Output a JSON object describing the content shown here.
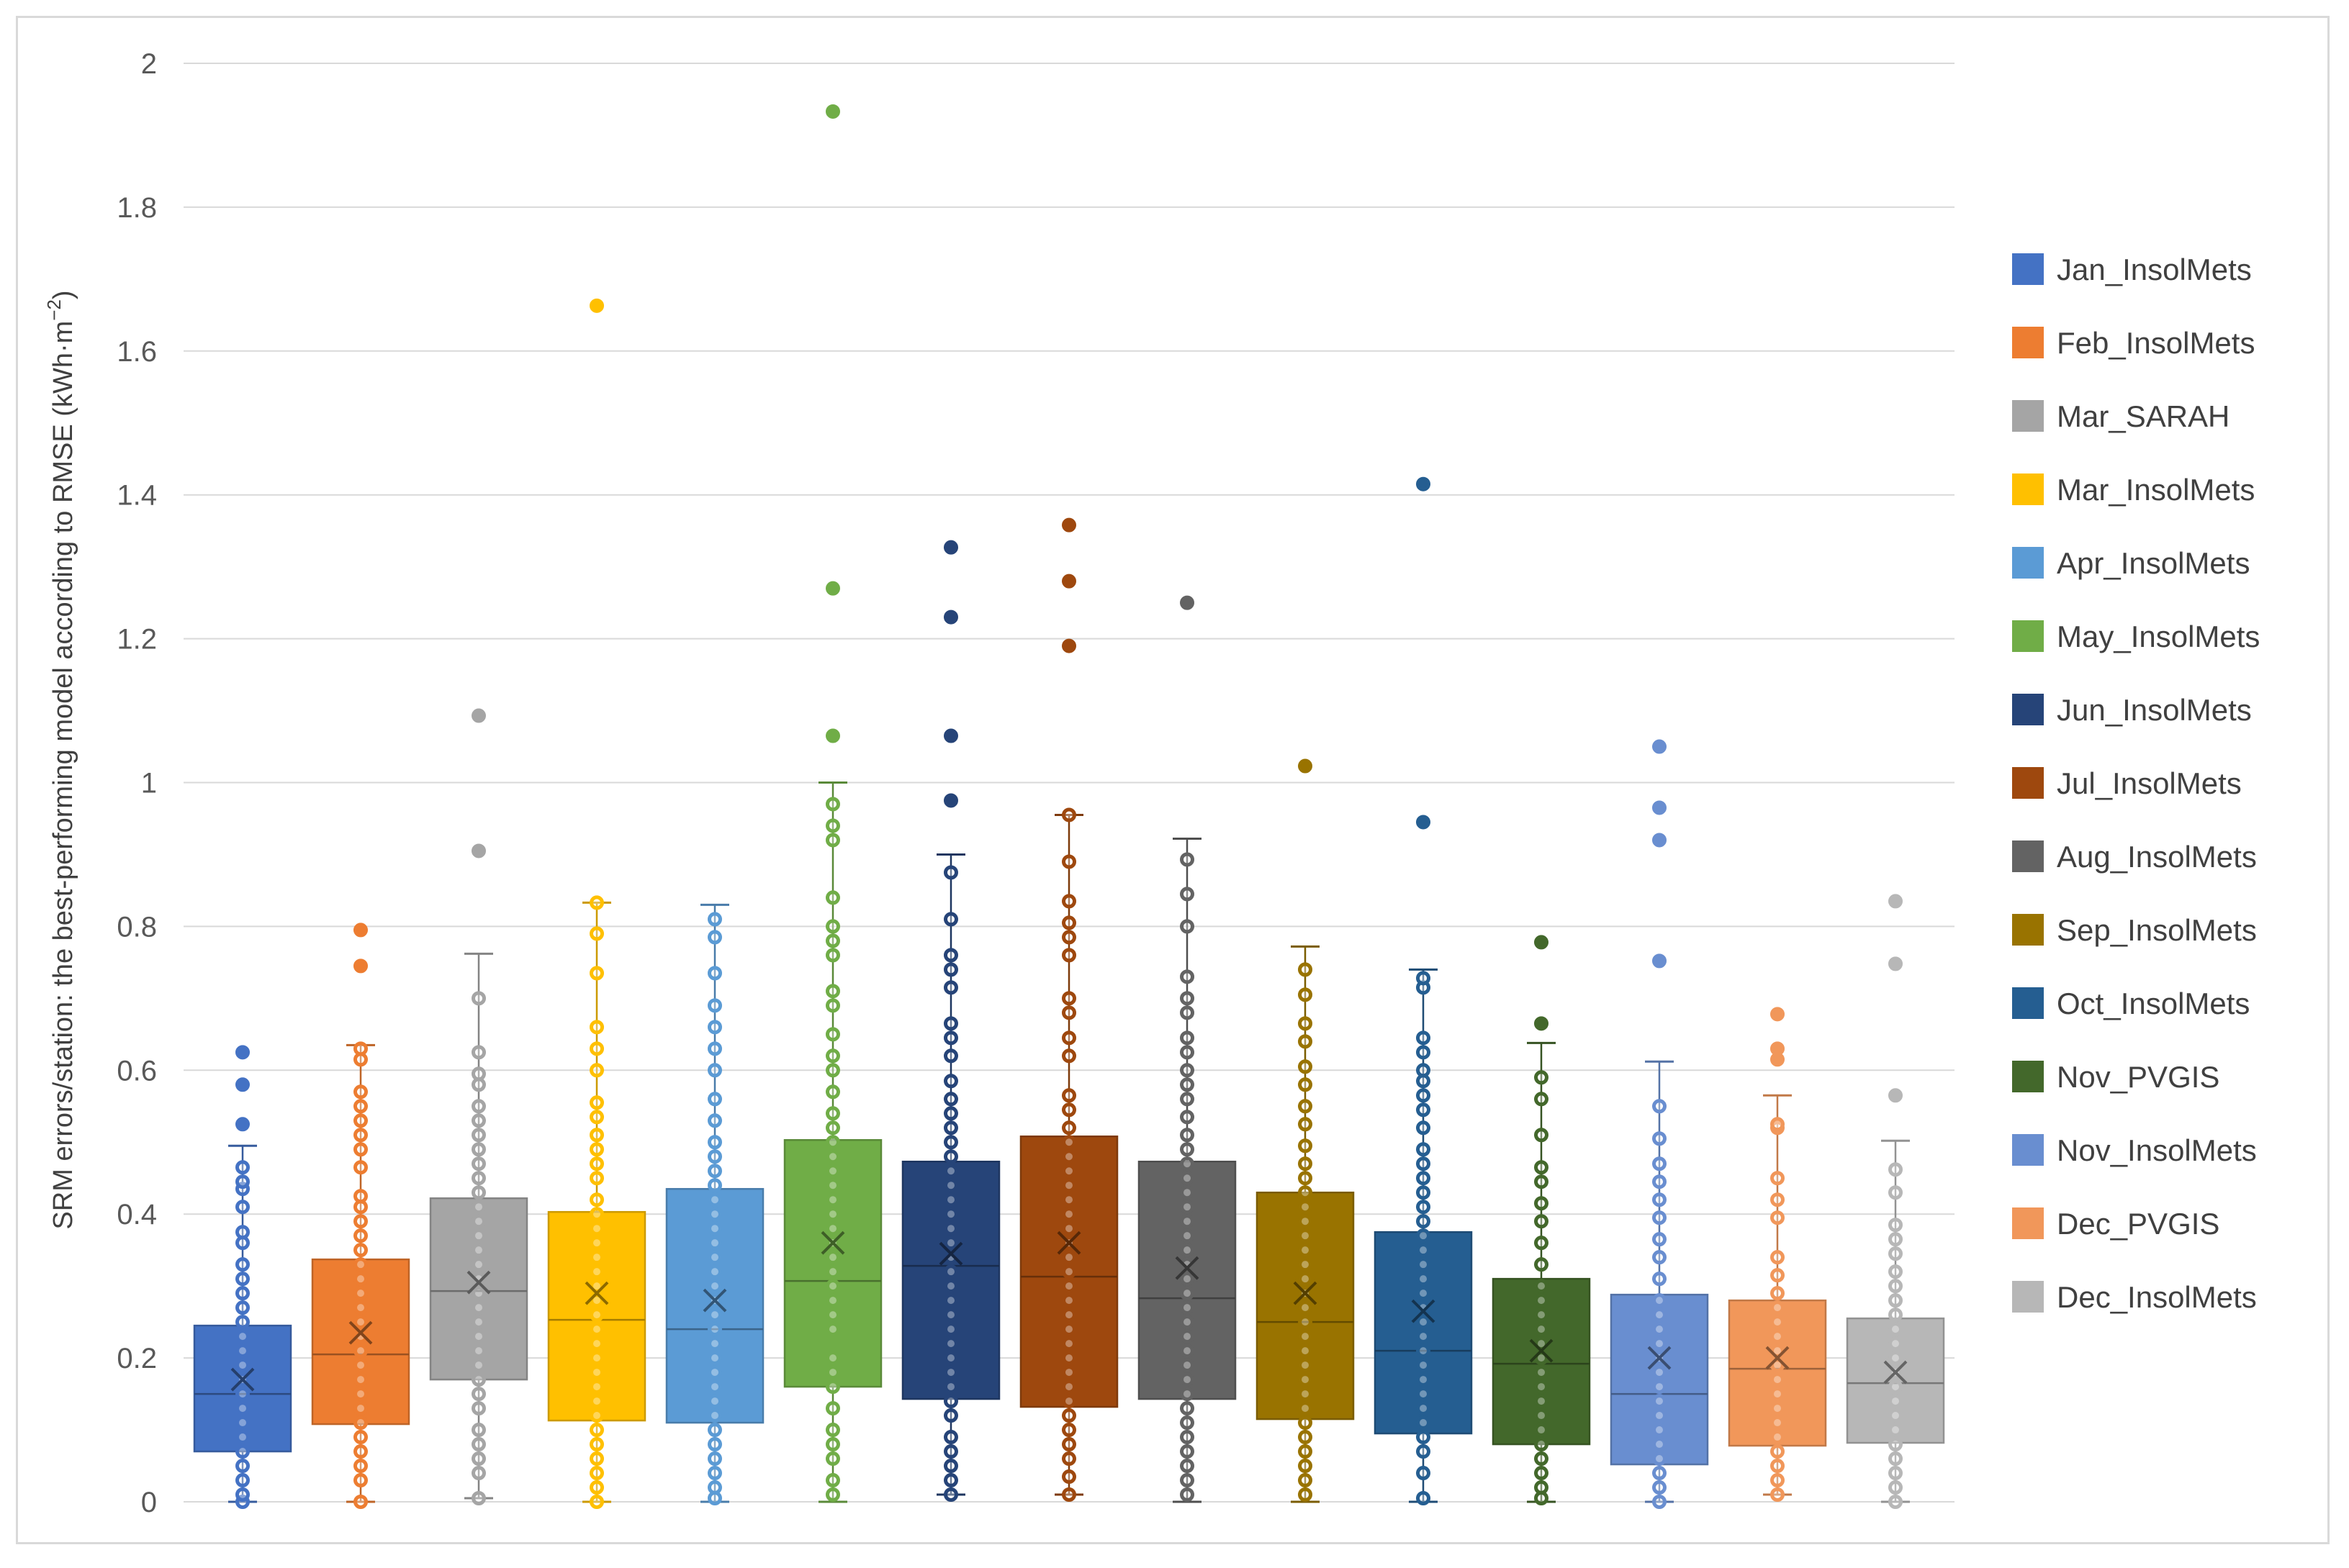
{
  "chart_data": {
    "type": "boxplot",
    "title": "",
    "xlabel": "",
    "ylabel": "SRM errors/station: the best-performing model according to RMSE (kWh·m",
    "ylabel_sup": "−2",
    "ylabel_suffix": ")",
    "ylim": [
      0,
      2
    ],
    "yticks": [
      "0",
      "0.2",
      "0.4",
      "0.6",
      "0.8",
      "1",
      "1.2",
      "1.4",
      "1.6",
      "1.8",
      "2"
    ],
    "grid": true,
    "legend_position": "right",
    "series": [
      {
        "name": "Jan_InsolMets",
        "color": "#4472C4",
        "min": 0.0,
        "q1": 0.07,
        "median": 0.15,
        "q3": 0.245,
        "whisker_high": 0.495,
        "mean": 0.17,
        "points": [
          0.0,
          0.01,
          0.03,
          0.05,
          0.07,
          0.09,
          0.11,
          0.13,
          0.15,
          0.17,
          0.19,
          0.21,
          0.23,
          0.25,
          0.27,
          0.29,
          0.31,
          0.33,
          0.36,
          0.375,
          0.41,
          0.435,
          0.445,
          0.465,
          0.525,
          0.58,
          0.625
        ]
      },
      {
        "name": "Feb_InsolMets",
        "color": "#ED7D31",
        "min": 0.0,
        "q1": 0.108,
        "median": 0.205,
        "q3": 0.337,
        "whisker_high": 0.635,
        "mean": 0.235,
        "points": [
          0.0,
          0.03,
          0.05,
          0.07,
          0.09,
          0.11,
          0.13,
          0.15,
          0.17,
          0.19,
          0.21,
          0.23,
          0.25,
          0.27,
          0.29,
          0.31,
          0.33,
          0.35,
          0.37,
          0.39,
          0.41,
          0.425,
          0.465,
          0.49,
          0.51,
          0.53,
          0.55,
          0.57,
          0.615,
          0.63,
          0.745,
          0.795
        ]
      },
      {
        "name": "Mar_SARAH",
        "color": "#A5A5A5",
        "min": 0.005,
        "q1": 0.17,
        "median": 0.293,
        "q3": 0.422,
        "whisker_high": 0.762,
        "mean": 0.305,
        "points": [
          0.005,
          0.04,
          0.06,
          0.08,
          0.1,
          0.13,
          0.15,
          0.17,
          0.19,
          0.21,
          0.23,
          0.25,
          0.27,
          0.29,
          0.31,
          0.33,
          0.35,
          0.37,
          0.39,
          0.41,
          0.43,
          0.45,
          0.47,
          0.49,
          0.51,
          0.53,
          0.55,
          0.58,
          0.595,
          0.625,
          0.7,
          0.905,
          1.093
        ]
      },
      {
        "name": "Mar_InsolMets",
        "color": "#FFC000",
        "min": 0.0,
        "q1": 0.113,
        "median": 0.253,
        "q3": 0.403,
        "whisker_high": 0.833,
        "mean": 0.29,
        "points": [
          0.0,
          0.02,
          0.04,
          0.06,
          0.08,
          0.1,
          0.12,
          0.14,
          0.16,
          0.18,
          0.2,
          0.22,
          0.24,
          0.26,
          0.28,
          0.3,
          0.32,
          0.34,
          0.36,
          0.38,
          0.4,
          0.42,
          0.45,
          0.47,
          0.49,
          0.51,
          0.535,
          0.555,
          0.6,
          0.63,
          0.66,
          0.735,
          0.79,
          0.833,
          1.663
        ]
      },
      {
        "name": "Apr_InsolMets",
        "color": "#5B9BD5",
        "min": 0.0,
        "q1": 0.11,
        "median": 0.24,
        "q3": 0.435,
        "whisker_high": 0.83,
        "mean": 0.28,
        "points": [
          0.005,
          0.02,
          0.04,
          0.06,
          0.08,
          0.1,
          0.12,
          0.14,
          0.16,
          0.18,
          0.2,
          0.22,
          0.24,
          0.26,
          0.28,
          0.3,
          0.32,
          0.34,
          0.36,
          0.38,
          0.4,
          0.42,
          0.44,
          0.46,
          0.48,
          0.5,
          0.53,
          0.56,
          0.6,
          0.63,
          0.66,
          0.69,
          0.735,
          0.785,
          0.81
        ]
      },
      {
        "name": "May_InsolMets",
        "color": "#70AD47",
        "min": 0.0,
        "q1": 0.16,
        "median": 0.307,
        "q3": 0.503,
        "whisker_high": 1.0,
        "mean": 0.36,
        "points": [
          0.01,
          0.03,
          0.06,
          0.08,
          0.1,
          0.13,
          0.16,
          0.18,
          0.2,
          0.24,
          0.26,
          0.28,
          0.3,
          0.32,
          0.34,
          0.36,
          0.38,
          0.4,
          0.42,
          0.44,
          0.46,
          0.48,
          0.5,
          0.52,
          0.54,
          0.57,
          0.6,
          0.62,
          0.65,
          0.69,
          0.71,
          0.76,
          0.78,
          0.8,
          0.84,
          0.92,
          0.94,
          0.97,
          1.065,
          1.27,
          1.933
        ]
      },
      {
        "name": "Jun_InsolMets",
        "color": "#264478",
        "min": 0.01,
        "q1": 0.143,
        "median": 0.328,
        "q3": 0.473,
        "whisker_high": 0.9,
        "mean": 0.345,
        "points": [
          0.01,
          0.03,
          0.05,
          0.07,
          0.09,
          0.12,
          0.14,
          0.16,
          0.18,
          0.2,
          0.22,
          0.24,
          0.26,
          0.28,
          0.3,
          0.32,
          0.34,
          0.36,
          0.38,
          0.4,
          0.42,
          0.44,
          0.46,
          0.48,
          0.5,
          0.52,
          0.54,
          0.56,
          0.585,
          0.62,
          0.645,
          0.665,
          0.715,
          0.74,
          0.76,
          0.81,
          0.875,
          0.975,
          1.065,
          1.23,
          1.327
        ]
      },
      {
        "name": "Jul_InsolMets",
        "color": "#9E480E",
        "min": 0.01,
        "q1": 0.132,
        "median": 0.313,
        "q3": 0.508,
        "whisker_high": 0.955,
        "mean": 0.36,
        "points": [
          0.01,
          0.035,
          0.06,
          0.08,
          0.1,
          0.12,
          0.14,
          0.16,
          0.18,
          0.2,
          0.22,
          0.24,
          0.26,
          0.28,
          0.3,
          0.32,
          0.34,
          0.36,
          0.38,
          0.4,
          0.42,
          0.44,
          0.46,
          0.48,
          0.5,
          0.52,
          0.545,
          0.565,
          0.62,
          0.645,
          0.68,
          0.7,
          0.76,
          0.785,
          0.805,
          0.835,
          0.89,
          0.955,
          1.19,
          1.28,
          1.358
        ]
      },
      {
        "name": "Aug_InsolMets",
        "color": "#636363",
        "min": 0.0,
        "q1": 0.143,
        "median": 0.283,
        "q3": 0.473,
        "whisker_high": 0.922,
        "mean": 0.325,
        "points": [
          0.01,
          0.03,
          0.05,
          0.07,
          0.09,
          0.11,
          0.13,
          0.15,
          0.17,
          0.19,
          0.21,
          0.23,
          0.25,
          0.27,
          0.29,
          0.31,
          0.33,
          0.35,
          0.37,
          0.39,
          0.41,
          0.43,
          0.45,
          0.47,
          0.49,
          0.51,
          0.535,
          0.56,
          0.58,
          0.6,
          0.625,
          0.645,
          0.68,
          0.7,
          0.73,
          0.8,
          0.845,
          0.893,
          1.25
        ]
      },
      {
        "name": "Sep_InsolMets",
        "color": "#997300",
        "min": 0.0,
        "q1": 0.115,
        "median": 0.25,
        "q3": 0.43,
        "whisker_high": 0.772,
        "mean": 0.29,
        "points": [
          0.01,
          0.03,
          0.05,
          0.07,
          0.09,
          0.11,
          0.13,
          0.15,
          0.17,
          0.19,
          0.21,
          0.23,
          0.25,
          0.27,
          0.29,
          0.31,
          0.33,
          0.35,
          0.37,
          0.39,
          0.41,
          0.43,
          0.45,
          0.47,
          0.495,
          0.525,
          0.55,
          0.58,
          0.605,
          0.64,
          0.665,
          0.705,
          0.74,
          1.023
        ]
      },
      {
        "name": "Oct_InsolMets",
        "color": "#255E91",
        "min": 0.0,
        "q1": 0.095,
        "median": 0.21,
        "q3": 0.375,
        "whisker_high": 0.74,
        "mean": 0.265,
        "points": [
          0.005,
          0.04,
          0.07,
          0.09,
          0.11,
          0.13,
          0.15,
          0.17,
          0.19,
          0.21,
          0.23,
          0.25,
          0.27,
          0.29,
          0.31,
          0.33,
          0.35,
          0.37,
          0.39,
          0.41,
          0.43,
          0.45,
          0.47,
          0.49,
          0.52,
          0.545,
          0.565,
          0.585,
          0.6,
          0.625,
          0.645,
          0.715,
          0.728,
          0.945,
          1.415
        ]
      },
      {
        "name": "Nov_PVGIS",
        "color": "#43682B",
        "min": 0.0,
        "q1": 0.08,
        "median": 0.192,
        "q3": 0.31,
        "whisker_high": 0.638,
        "mean": 0.21,
        "points": [
          0.005,
          0.02,
          0.04,
          0.06,
          0.08,
          0.1,
          0.12,
          0.14,
          0.16,
          0.18,
          0.2,
          0.22,
          0.24,
          0.26,
          0.28,
          0.3,
          0.33,
          0.36,
          0.39,
          0.415,
          0.445,
          0.465,
          0.51,
          0.56,
          0.59,
          0.665,
          0.778
        ]
      },
      {
        "name": "Nov_InsolMets",
        "color": "#698ED0",
        "min": 0.0,
        "q1": 0.052,
        "median": 0.15,
        "q3": 0.288,
        "whisker_high": 0.612,
        "mean": 0.2,
        "points": [
          0.0,
          0.02,
          0.04,
          0.06,
          0.08,
          0.1,
          0.12,
          0.14,
          0.16,
          0.18,
          0.2,
          0.22,
          0.24,
          0.26,
          0.28,
          0.31,
          0.34,
          0.365,
          0.395,
          0.42,
          0.445,
          0.47,
          0.505,
          0.55,
          0.752,
          0.92,
          0.965,
          1.05
        ]
      },
      {
        "name": "Dec_PVGIS",
        "color": "#F1975A",
        "min": 0.01,
        "q1": 0.078,
        "median": 0.185,
        "q3": 0.28,
        "whisker_high": 0.565,
        "mean": 0.2,
        "points": [
          0.01,
          0.03,
          0.05,
          0.07,
          0.09,
          0.11,
          0.13,
          0.15,
          0.17,
          0.19,
          0.21,
          0.23,
          0.25,
          0.27,
          0.29,
          0.315,
          0.34,
          0.395,
          0.42,
          0.45,
          0.52,
          0.525,
          0.615,
          0.63,
          0.678
        ]
      },
      {
        "name": "Dec_InsolMets",
        "color": "#B7B7B7",
        "min": 0.0,
        "q1": 0.082,
        "median": 0.165,
        "q3": 0.255,
        "whisker_high": 0.502,
        "mean": 0.18,
        "points": [
          0.0,
          0.02,
          0.04,
          0.06,
          0.08,
          0.1,
          0.12,
          0.14,
          0.16,
          0.18,
          0.2,
          0.22,
          0.24,
          0.26,
          0.28,
          0.3,
          0.32,
          0.345,
          0.365,
          0.385,
          0.43,
          0.462,
          0.565,
          0.748,
          0.835
        ]
      }
    ]
  }
}
